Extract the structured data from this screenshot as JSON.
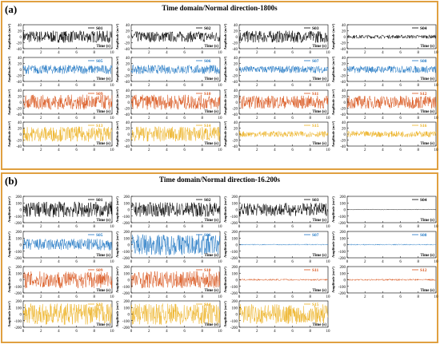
{
  "panels": [
    {
      "letter": "(a)",
      "title": "Time domain/Normal direction-1800s",
      "ylabel": "Amplitude (m/s²)",
      "xlabel": "Time (s)",
      "xticks": [
        "0",
        "2",
        "4",
        "6",
        "8",
        "10"
      ],
      "yticks": [
        "40",
        "20",
        "0",
        "-20",
        "-40"
      ],
      "yrange": [
        -40,
        40
      ]
    },
    {
      "letter": "(b)",
      "title": "Time domain/Normal direction-16.200s",
      "ylabel": "Amplitude (m/s²)",
      "xlabel": "Time (s)",
      "xticks": [
        "0",
        "2",
        "4",
        "6",
        "8",
        "10"
      ],
      "yticks": [
        "200",
        "100",
        "0",
        "-100",
        "-200"
      ],
      "yrange": [
        -200,
        200
      ]
    }
  ],
  "chart_data": [
    {
      "type": "line",
      "panel": "(a)",
      "x_range": [
        0,
        10
      ],
      "y_range": [
        -40,
        40
      ],
      "series": [
        {
          "name": "S01",
          "color": "#000000",
          "amplitude": 20
        },
        {
          "name": "S02",
          "color": "#000000",
          "amplitude": 18
        },
        {
          "name": "S03",
          "color": "#000000",
          "amplitude": 20
        },
        {
          "name": "S04",
          "color": "#000000",
          "amplitude": 6
        },
        {
          "name": "S05",
          "color": "#1f77c4",
          "amplitude": 15
        },
        {
          "name": "S06",
          "color": "#1f77c4",
          "amplitude": 15
        },
        {
          "name": "S07",
          "color": "#1f77c4",
          "amplitude": 12
        },
        {
          "name": "S08",
          "color": "#1f77c4",
          "amplitude": 12
        },
        {
          "name": "S09",
          "color": "#d95319",
          "amplitude": 25
        },
        {
          "name": "S10",
          "color": "#d95319",
          "amplitude": 25
        },
        {
          "name": "S11",
          "color": "#d95319",
          "amplitude": 22
        },
        {
          "name": "S12",
          "color": "#d95319",
          "amplitude": 22
        },
        {
          "name": "S13",
          "color": "#edb120",
          "amplitude": 25
        },
        {
          "name": "S14",
          "color": "#edb120",
          "amplitude": 25
        },
        {
          "name": "S15",
          "color": "#edb120",
          "amplitude": 10
        },
        {
          "name": "S16",
          "color": "#edb120",
          "amplitude": 10
        }
      ]
    },
    {
      "type": "line",
      "panel": "(b)",
      "x_range": [
        0,
        10
      ],
      "y_range": [
        -200,
        200
      ],
      "series": [
        {
          "name": "S01",
          "color": "#000000",
          "amplitude": 120
        },
        {
          "name": "S02",
          "color": "#000000",
          "amplitude": 110
        },
        {
          "name": "S03",
          "color": "#000000",
          "amplitude": 100
        },
        {
          "name": "S04",
          "color": "#000000",
          "amplitude": 5
        },
        {
          "name": "S05",
          "color": "#1f77c4",
          "amplitude": 90
        },
        {
          "name": "S06",
          "color": "#1f77c4",
          "amplitude": 160
        },
        {
          "name": "S07",
          "color": "#1f77c4",
          "amplitude": 8
        },
        {
          "name": "S08",
          "color": "#1f77c4",
          "amplitude": 8
        },
        {
          "name": "S09",
          "color": "#d95319",
          "amplitude": 130
        },
        {
          "name": "S10",
          "color": "#d95319",
          "amplitude": 130
        },
        {
          "name": "S11",
          "color": "#d95319",
          "amplitude": 12
        },
        {
          "name": "S12",
          "color": "#d95319",
          "amplitude": 12
        },
        {
          "name": "S13",
          "color": "#edb120",
          "amplitude": 160
        },
        {
          "name": "S14",
          "color": "#edb120",
          "amplitude": 160
        },
        {
          "name": "S15",
          "color": "#edb120",
          "amplitude": 150
        }
      ]
    }
  ]
}
